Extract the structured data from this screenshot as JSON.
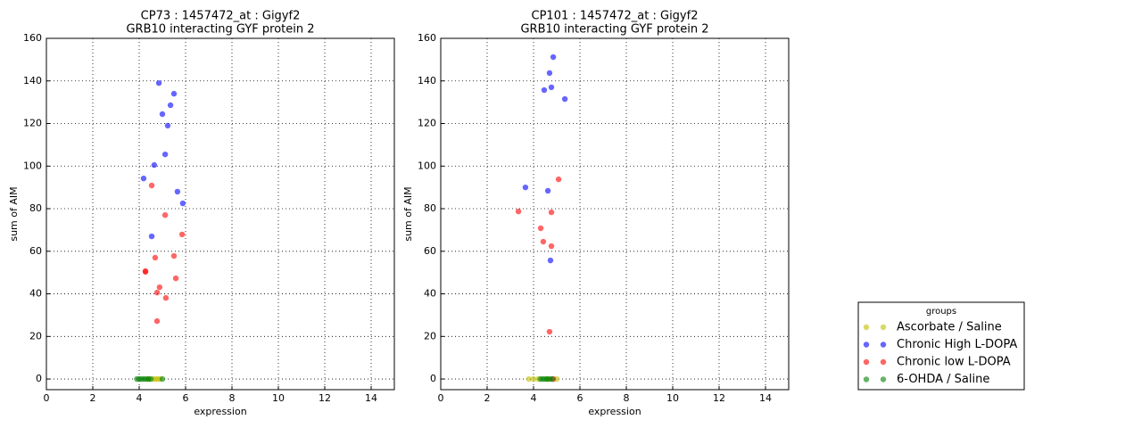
{
  "chart_data": [
    {
      "type": "scatter",
      "title": "CP73 : 1457472_at : Gigyf2",
      "subtitle": "GRB10 interacting GYF protein 2",
      "xlabel": "expression",
      "ylabel": "sum of AIM",
      "xlim": [
        0,
        15
      ],
      "ylim": [
        -5,
        160
      ],
      "xticks": [
        0,
        2,
        4,
        6,
        8,
        10,
        12,
        14
      ],
      "yticks": [
        0,
        20,
        40,
        60,
        80,
        100,
        120,
        140,
        160
      ],
      "grid": true,
      "series": [
        {
          "x": [
            4.4,
            4.6,
            4.7,
            4.8,
            4.9
          ],
          "y": [
            0,
            0,
            0,
            0,
            0
          ]
        },
        {
          "x": [
            4.85,
            5.5,
            5.35,
            5.0,
            5.23,
            5.12,
            4.65,
            4.19,
            5.65,
            5.88,
            4.54
          ],
          "y": [
            139,
            134,
            128.6,
            124.4,
            119,
            105.5,
            100.5,
            94.2,
            88,
            82.5,
            67
          ]
        },
        {
          "x": [
            4.54,
            5.12,
            5.85,
            4.69,
            5.5,
            4.27,
            4.27,
            5.58,
            4.88,
            4.77,
            5.15,
            4.77
          ],
          "y": [
            90.9,
            77,
            67.9,
            57,
            57.8,
            50.7,
            50.3,
            47.3,
            43.1,
            40.6,
            38.1,
            27.2
          ]
        },
        {
          "x": [
            3.9,
            4.0,
            4.1,
            4.2,
            4.3,
            4.4,
            4.5,
            5.0
          ],
          "y": [
            0,
            0,
            0,
            0,
            0,
            0,
            0,
            0
          ]
        }
      ]
    },
    {
      "type": "scatter",
      "title": "CP101 : 1457472_at : Gigyf2",
      "subtitle": "GRB10 interacting GYF protein 2",
      "xlabel": "expression",
      "ylabel": "sum of AIM",
      "xlim": [
        0,
        15
      ],
      "ylim": [
        -5,
        160
      ],
      "xticks": [
        0,
        2,
        4,
        6,
        8,
        10,
        12,
        14
      ],
      "yticks": [
        0,
        20,
        40,
        60,
        80,
        100,
        120,
        140,
        160
      ],
      "grid": true,
      "series": [
        {
          "x": [
            3.8,
            4.0,
            4.2,
            4.6,
            5.0
          ],
          "y": [
            0,
            0,
            0,
            0,
            0
          ]
        },
        {
          "x": [
            4.85,
            4.69,
            4.77,
            4.46,
            5.35,
            3.65,
            4.62,
            4.73
          ],
          "y": [
            151.2,
            143.7,
            137,
            135.7,
            131.5,
            90,
            88.4,
            55.7
          ]
        },
        {
          "x": [
            5.08,
            3.35,
            4.77,
            4.31,
            4.42,
            4.77,
            4.69,
            4.85
          ],
          "y": [
            93.8,
            78.7,
            78.3,
            70.8,
            64.5,
            62.4,
            22.2,
            0
          ]
        },
        {
          "x": [
            4.3,
            4.4,
            4.5,
            4.6,
            4.7,
            4.8
          ],
          "y": [
            0,
            0,
            0,
            0,
            0,
            0
          ]
        }
      ]
    }
  ],
  "legend": {
    "title": "groups",
    "items": [
      {
        "name": "Ascorbate / Saline",
        "color": "#bfbf00"
      },
      {
        "name": "Chronic High L-DOPA",
        "color": "#0000ff"
      },
      {
        "name": "Chronic low L-DOPA",
        "color": "#ff0000"
      },
      {
        "name": "6-OHDA / Saline",
        "color": "#008000"
      }
    ]
  }
}
